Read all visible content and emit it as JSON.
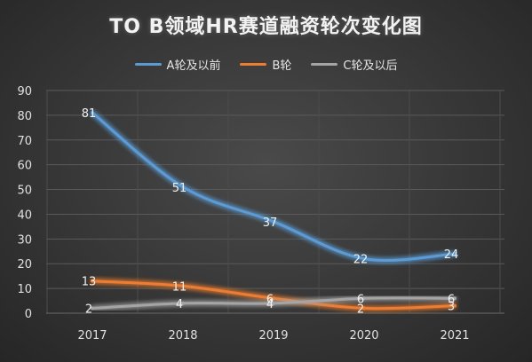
{
  "chart_data": {
    "type": "line",
    "title": "TO B领域HR赛道融资轮次变化图",
    "categories": [
      "2017",
      "2018",
      "2019",
      "2020",
      "2021"
    ],
    "ylim": [
      0,
      90
    ],
    "yticks": [
      0,
      10,
      20,
      30,
      40,
      50,
      60,
      70,
      80,
      90
    ],
    "grid": true,
    "legend_position": "top",
    "series": [
      {
        "name": "A轮及以前",
        "values": [
          81,
          51,
          37,
          22,
          24
        ],
        "color": "#5b9bd5"
      },
      {
        "name": "B轮",
        "values": [
          13,
          11,
          6,
          2,
          3
        ],
        "color": "#ed7d31"
      },
      {
        "name": "C轮及以后",
        "values": [
          2,
          4,
          4,
          6,
          6
        ],
        "color": "#a5a5a5"
      }
    ]
  }
}
